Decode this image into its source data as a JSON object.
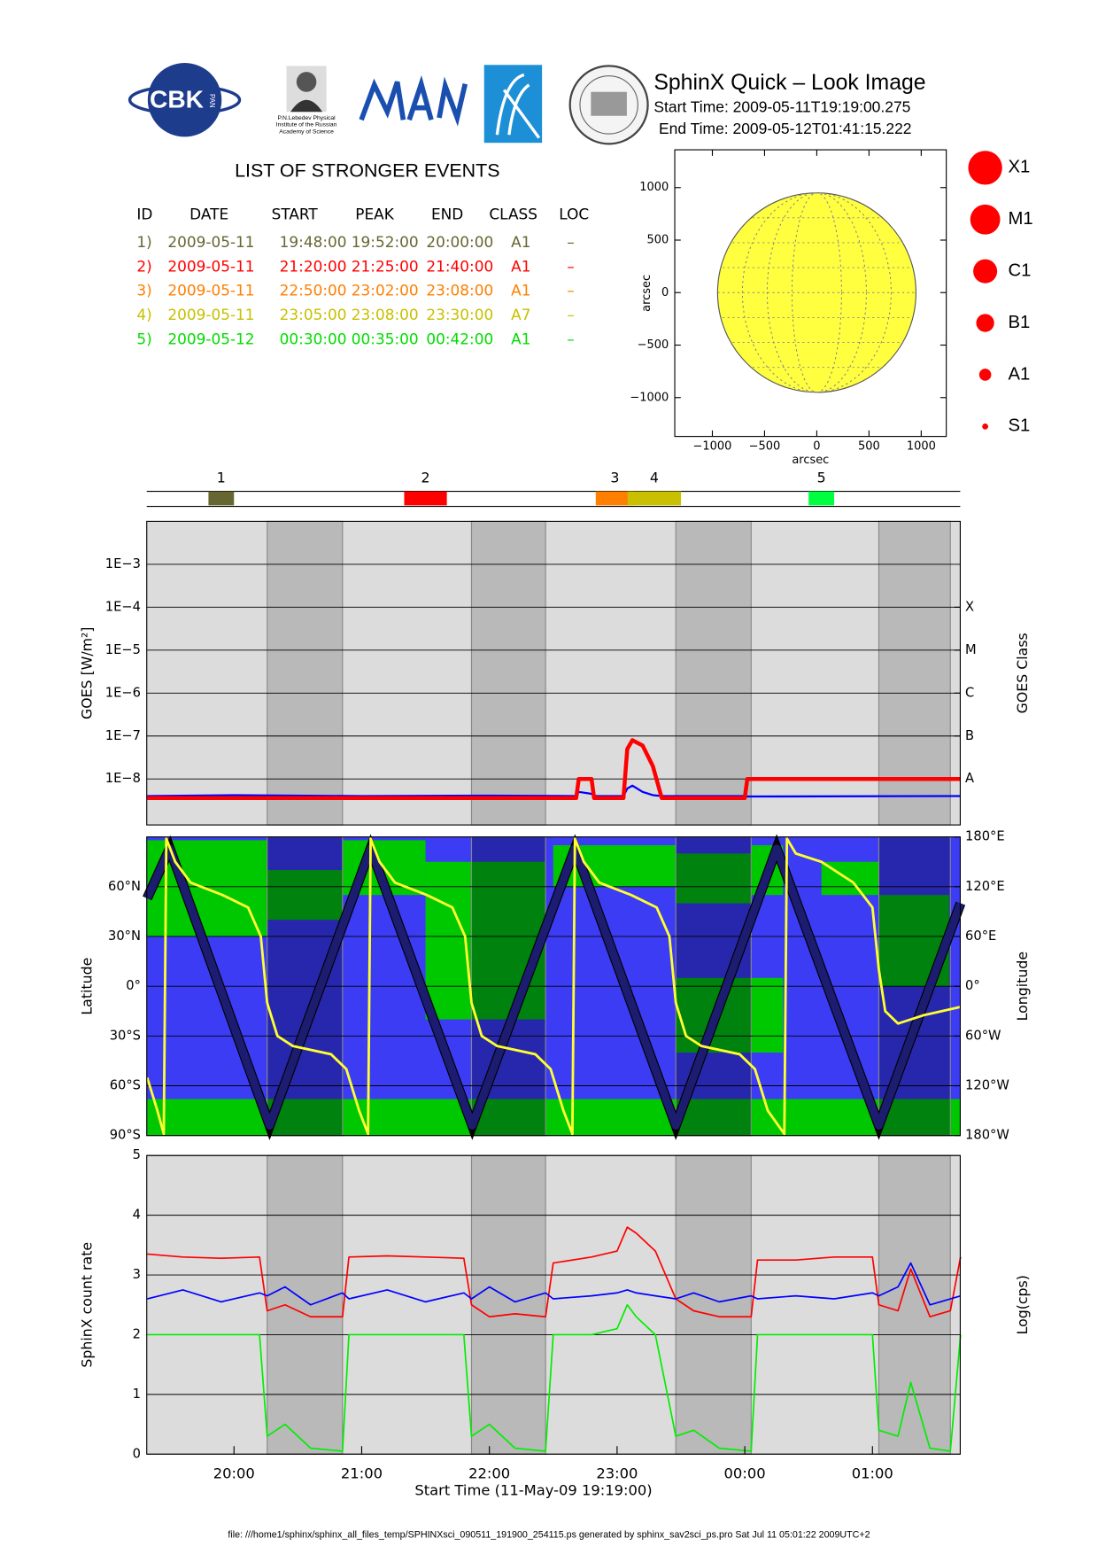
{
  "header": {
    "title": "SphinX Quick – Look Image",
    "start_time": "Start Time: 2009-05-11T19:19:00.275",
    "end_time": "End Time: 2009-05-12T01:41:15.222",
    "logo_text": "CBK",
    "logo_subtext": "PAN",
    "logo_caption": [
      "P.N.Lebedev Physical",
      "Institute of the Russian",
      "Academy of Science"
    ]
  },
  "events": {
    "title": "LIST OF STRONGER EVENTS",
    "columns": [
      "ID",
      "DATE",
      "START",
      "PEAK",
      "END",
      "CLASS",
      "LOC"
    ],
    "rows": [
      [
        "1)",
        "2009-05-11",
        "19:48:00",
        "19:52:00",
        "20:00:00",
        "A1",
        "–"
      ],
      [
        "2)",
        "2009-05-11",
        "21:20:00",
        "21:25:00",
        "21:40:00",
        "A1",
        "–"
      ],
      [
        "3)",
        "2009-05-11",
        "22:50:00",
        "23:02:00",
        "23:08:00",
        "A1",
        "–"
      ],
      [
        "4)",
        "2009-05-11",
        "23:05:00",
        "23:08:00",
        "23:30:00",
        "A7",
        "–"
      ],
      [
        "5)",
        "2009-05-12",
        "00:30:00",
        "00:35:00",
        "00:42:00",
        "A1",
        "–"
      ]
    ],
    "row_colors": [
      "#666633",
      "#ff0000",
      "#ff7f00",
      "#c8c000",
      "#00dd00"
    ]
  },
  "class_legend": {
    "labels": [
      "X1",
      "M1",
      "C1",
      "B1",
      "A1",
      "S1"
    ],
    "color": "#ff0000"
  },
  "chart_data": [
    {
      "type": "timeline",
      "categories": [
        "1",
        "2",
        "3",
        "4",
        "5"
      ],
      "start": [
        19.8,
        21.333,
        22.833,
        23.083,
        24.5
      ],
      "end": [
        20.0,
        21.667,
        23.133,
        23.5,
        24.7
      ],
      "colors": [
        "#666633",
        "#ff0000",
        "#ff8000",
        "#c8c000",
        "#00ff40"
      ],
      "xlim": [
        19.3167,
        25.6875
      ]
    },
    {
      "type": "disk",
      "xlabel": "arcsec",
      "ylabel": "arcsec",
      "radius": 950,
      "color": "#ffff40",
      "xlim": [
        -1360,
        1240
      ],
      "ylim": [
        -1370,
        1360
      ],
      "xticks": [
        {
          "value": -1000,
          "label": "−1000"
        },
        {
          "value": -500,
          "label": "−500"
        },
        0,
        500,
        1000
      ],
      "yticks": [
        {
          "value": -1000,
          "label": "−1000"
        },
        {
          "value": -500,
          "label": "−500"
        },
        0,
        500,
        1000
      ]
    },
    {
      "type": "line",
      "ylabel": "GOES [W/m²]",
      "y2label": "GOES Class",
      "log_scale": true,
      "background_color": "#dcdcdc",
      "shade_color": "#b9b9b9",
      "shading": [
        [
          20.26,
          20.85
        ],
        [
          21.86,
          22.44
        ],
        [
          23.46,
          24.05
        ],
        [
          25.05,
          25.61
        ]
      ],
      "xlim": [
        19.3167,
        25.6875
      ],
      "ylim": [
        8.5e-10,
        0.01
      ],
      "yticks": [
        {
          "value": 0.001,
          "label": "1E−3"
        },
        {
          "value": 0.0001,
          "label": "1E−4"
        },
        {
          "value": 1e-05,
          "label": "1E−5"
        },
        {
          "value": 1e-06,
          "label": "1E−6"
        },
        {
          "value": 1e-07,
          "label": "1E−7"
        },
        {
          "value": 1e-08,
          "label": "1E−8"
        }
      ],
      "y2lim": [
        8.5e-10,
        0.01
      ],
      "y2ticks": [
        {
          "value": 0.0001,
          "label": "X"
        },
        {
          "value": 1e-05,
          "label": "M"
        },
        {
          "value": 1e-06,
          "label": "C"
        },
        {
          "value": 1e-07,
          "label": "B"
        },
        {
          "value": 1e-08,
          "label": "A"
        }
      ],
      "grid": true,
      "x": [
        19.32,
        20.0,
        21.0,
        22.0,
        22.68,
        22.7,
        22.8,
        22.82,
        23.0,
        23.05,
        23.08,
        23.12,
        23.2,
        23.28,
        23.35,
        24.0,
        24.02,
        25.69
      ],
      "series": [
        {
          "color": "#0000ff",
          "width": 2,
          "values": [
            4e-09,
            4.2e-09,
            4e-09,
            4.1e-09,
            4e-09,
            5e-09,
            4.5e-09,
            4e-09,
            4e-09,
            4e-09,
            6e-09,
            7e-09,
            5e-09,
            4.2e-09,
            4e-09,
            4e-09,
            3.9e-09,
            4e-09
          ]
        },
        {
          "color": "#ff0000",
          "width": 4,
          "values": [
            3.6e-09,
            3.6e-09,
            3.6e-09,
            3.6e-09,
            3.6e-09,
            1e-08,
            1e-08,
            3.6e-09,
            3.6e-09,
            3.6e-09,
            5e-08,
            8e-08,
            6e-08,
            2e-08,
            3.6e-09,
            3.6e-09,
            1e-08,
            1e-08
          ]
        }
      ]
    },
    {
      "type": "line",
      "ylabel": "Latitude",
      "y2label": "Longitude",
      "background_color": "#3c3cf5",
      "shade_color": "rgba(0,0,40,0.35)",
      "region_color": "#00c800",
      "regions": [
        {
          "x": [
            19.32,
            25.69
          ],
          "y": [
            -90,
            -68
          ]
        },
        {
          "x": [
            19.32,
            20.26
          ],
          "y": [
            30,
            88
          ]
        },
        {
          "x": [
            20.26,
            20.85
          ],
          "y": [
            40,
            70
          ]
        },
        {
          "x": [
            20.85,
            21.5
          ],
          "y": [
            55,
            88
          ]
        },
        {
          "x": [
            21.5,
            22.44
          ],
          "y": [
            -20,
            75
          ]
        },
        {
          "x": [
            22.5,
            23.46
          ],
          "y": [
            60,
            85
          ]
        },
        {
          "x": [
            23.46,
            24.3
          ],
          "y": [
            -40,
            5
          ]
        },
        {
          "x": [
            23.46,
            24.05
          ],
          "y": [
            50,
            80
          ]
        },
        {
          "x": [
            24.05,
            24.3
          ],
          "y": [
            55,
            85
          ]
        },
        {
          "x": [
            24.6,
            25.05
          ],
          "y": [
            55,
            75
          ]
        },
        {
          "x": [
            25.05,
            25.6
          ],
          "y": [
            0,
            55
          ]
        }
      ],
      "xlim": [
        19.3167,
        25.6875
      ],
      "ylim": [
        -90,
        90
      ],
      "yticks": [
        {
          "value": -90,
          "label": "90°S"
        },
        {
          "value": -60,
          "label": "60°S"
        },
        {
          "value": -30,
          "label": "30°S"
        },
        {
          "value": 0,
          "label": "0°"
        },
        {
          "value": 30,
          "label": "30°N"
        },
        {
          "value": 60,
          "label": "60°N"
        }
      ],
      "y2lim": [
        -180,
        180
      ],
      "y2ticks": [
        {
          "value": 180,
          "label": "180°E"
        },
        {
          "value": 120,
          "label": "120°E"
        },
        {
          "value": 60,
          "label": "60°E"
        },
        {
          "value": 0,
          "label": "0°"
        },
        {
          "value": -60,
          "label": "60°W"
        },
        {
          "value": -120,
          "label": "120°W"
        },
        {
          "value": -180,
          "label": "180°W"
        }
      ],
      "grid": true,
      "series": [
        {
          "color": "#1c1c70",
          "width": 8,
          "x": [
            19.32,
            19.497,
            20.279,
            21.07,
            21.866,
            22.67,
            23.46,
            24.25,
            25.05,
            25.69
          ],
          "values": [
            53,
            83,
            -84,
            83,
            -84,
            83,
            -84,
            83,
            -84,
            50
          ]
        },
        {
          "color": "#ffff30",
          "width": 2.5,
          "axis": "y2",
          "x": [
            19.32,
            19.4,
            19.45,
            19.47,
            19.54,
            19.66,
            19.91,
            20.11,
            20.21,
            20.26,
            20.34,
            20.46,
            20.76,
            20.88,
            20.98,
            21.05,
            21.07,
            21.14,
            21.26,
            21.51,
            21.71,
            21.81,
            21.86,
            21.94,
            22.06,
            22.36,
            22.48,
            22.58,
            22.65,
            22.67,
            22.74,
            22.86,
            23.11,
            23.31,
            23.41,
            23.46,
            23.54,
            23.66,
            23.96,
            24.08,
            24.18,
            24.31,
            24.33,
            24.4,
            24.6,
            24.85,
            25.0,
            25.05,
            25.1,
            25.2,
            25.4,
            25.69
          ],
          "values": [
            -110,
            -150,
            -178,
            178,
            150,
            125,
            110,
            95,
            60,
            -20,
            -60,
            -72,
            -82,
            -100,
            -150,
            -178,
            178,
            150,
            125,
            110,
            95,
            60,
            -20,
            -60,
            -72,
            -82,
            -100,
            -150,
            -178,
            178,
            150,
            125,
            110,
            95,
            60,
            -20,
            -60,
            -72,
            -82,
            -100,
            -150,
            -178,
            178,
            160,
            150,
            125,
            95,
            20,
            -30,
            -45,
            -35,
            -25
          ]
        }
      ]
    },
    {
      "type": "line",
      "ylabel": "SphinX count rate",
      "y2label": "Log(cps)",
      "xlabel": "Start Time (11-May-09 19:19:00)",
      "background_color": "#dcdcdc",
      "shade_color": "#b9b9b9",
      "xlim": [
        19.3167,
        25.6875
      ],
      "xticks": [
        {
          "value": 20,
          "label": "20:00"
        },
        {
          "value": 21,
          "label": "21:00"
        },
        {
          "value": 22,
          "label": "22:00"
        },
        {
          "value": 23,
          "label": "23:00"
        },
        {
          "value": 24,
          "label": "00:00"
        },
        {
          "value": 25,
          "label": "01:00"
        }
      ],
      "ylim": [
        0,
        5
      ],
      "yticks": [
        0,
        1,
        2,
        3,
        4,
        5
      ],
      "grid": true,
      "x": [
        19.32,
        19.6,
        19.9,
        20.2,
        20.26,
        20.4,
        20.6,
        20.85,
        20.9,
        21.2,
        21.5,
        21.8,
        21.86,
        22.0,
        22.2,
        22.44,
        22.5,
        22.8,
        23.0,
        23.08,
        23.15,
        23.3,
        23.46,
        23.6,
        23.8,
        24.05,
        24.1,
        24.4,
        24.7,
        25.0,
        25.05,
        25.2,
        25.3,
        25.45,
        25.61,
        25.69
      ],
      "series": [
        {
          "color": "#ff0000",
          "width": 1.5,
          "values": [
            3.35,
            3.3,
            3.28,
            3.3,
            2.4,
            2.5,
            2.3,
            2.3,
            3.3,
            3.32,
            3.3,
            3.28,
            2.5,
            2.3,
            2.35,
            2.3,
            3.2,
            3.3,
            3.4,
            3.8,
            3.7,
            3.4,
            2.6,
            2.4,
            2.3,
            2.3,
            3.25,
            3.25,
            3.3,
            3.3,
            2.5,
            2.4,
            3.1,
            2.3,
            2.4,
            3.3
          ]
        },
        {
          "color": "#00ee00",
          "width": 1.5,
          "values": [
            2.0,
            2.0,
            2.0,
            2.0,
            0.3,
            0.5,
            0.1,
            0.05,
            2.0,
            2.0,
            2.0,
            2.0,
            0.3,
            0.5,
            0.1,
            0.05,
            2.0,
            2.0,
            2.1,
            2.5,
            2.3,
            2.0,
            0.3,
            0.4,
            0.1,
            0.05,
            2.0,
            2.0,
            2.0,
            2.0,
            0.4,
            0.3,
            1.2,
            0.1,
            0.05,
            2.0
          ]
        },
        {
          "color": "#0000ff",
          "width": 1.5,
          "values": [
            2.6,
            2.75,
            2.55,
            2.7,
            2.65,
            2.8,
            2.5,
            2.7,
            2.6,
            2.75,
            2.55,
            2.7,
            2.6,
            2.8,
            2.55,
            2.7,
            2.6,
            2.65,
            2.7,
            2.75,
            2.7,
            2.65,
            2.6,
            2.7,
            2.55,
            2.65,
            2.6,
            2.65,
            2.6,
            2.7,
            2.65,
            2.8,
            3.2,
            2.5,
            2.6,
            2.65
          ]
        }
      ]
    }
  ],
  "footer": "file: ///home1/sphinx/sphinx_all_files_temp/SPHINXsci_090511_191900_254115.ps generated by sphinx_sav2sci_ps.pro Sat Jul 11 05:01:22 2009UTC+2"
}
